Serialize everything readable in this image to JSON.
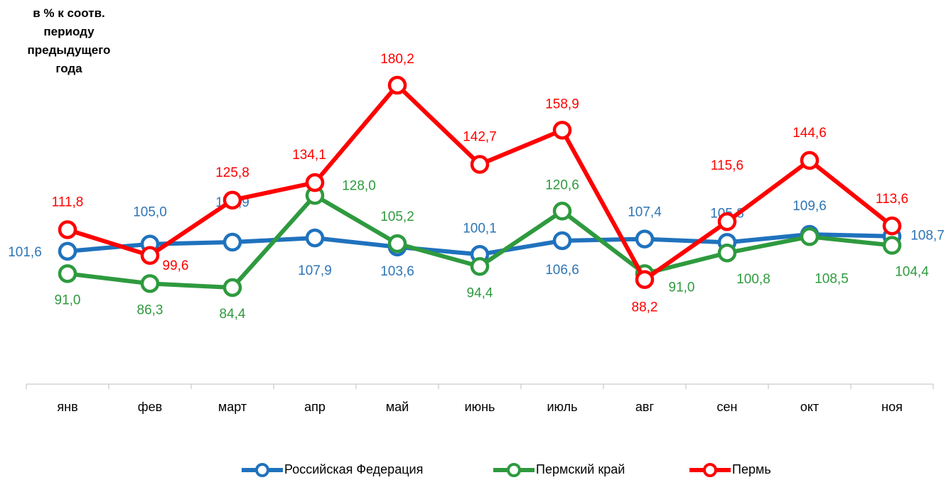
{
  "chart_data": {
    "type": "line",
    "title": "в % к соотв. периоду предыдущего года",
    "categories": [
      "янв",
      "фев",
      "март",
      "апр",
      "май",
      "июнь",
      "июль",
      "авг",
      "сен",
      "окт",
      "ноя"
    ],
    "series": [
      {
        "name": "Российская Федерация",
        "color": "#1f72bd",
        "label_color": "#2e75b6",
        "values": [
          101.6,
          105.0,
          105.9,
          107.9,
          103.6,
          100.1,
          106.6,
          107.4,
          105.8,
          109.6,
          108.7
        ],
        "value_labels": [
          "101,6",
          "105,0",
          "105,9",
          "107,9",
          "103,6",
          "100,1",
          "106,6",
          "107,4",
          "105,8",
          "109,6",
          "108,7"
        ]
      },
      {
        "name": "Пермский край",
        "color": "#2e9a3e",
        "label_color": "#2e9a3e",
        "values": [
          91.0,
          86.3,
          84.4,
          128.0,
          105.2,
          94.4,
          120.6,
          91.0,
          100.8,
          108.5,
          104.4
        ],
        "value_labels": [
          "91,0",
          "86,3",
          "84,4",
          "128,0",
          "105,2",
          "94,4",
          "120,6",
          "91,0",
          "100,8",
          "108,5",
          "104,4"
        ]
      },
      {
        "name": "Пермь",
        "color": "#ff0000",
        "label_color": "#ff0000",
        "values": [
          111.8,
          99.6,
          125.8,
          134.1,
          180.2,
          142.7,
          158.9,
          88.2,
          115.6,
          144.6,
          113.6
        ],
        "value_labels": [
          "111,8",
          "99,6",
          "125,8",
          "134,1",
          "180,2",
          "142,7",
          "158,9",
          "88,2",
          "115,6",
          "144,6",
          "113,6"
        ]
      }
    ],
    "legend": "bottom"
  }
}
